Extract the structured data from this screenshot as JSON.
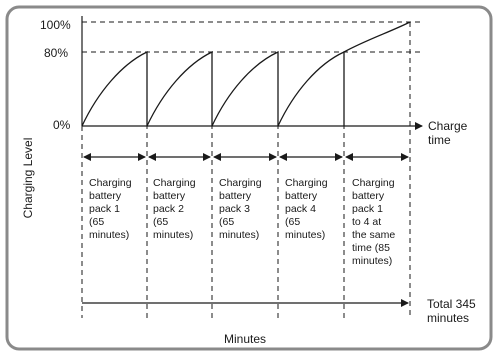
{
  "y_axis": {
    "label": "Charging Level",
    "ticks": [
      "100%",
      "80%",
      "0%"
    ]
  },
  "x_axis": {
    "label": "Minutes",
    "end_label_lines": [
      "Charge",
      "time"
    ]
  },
  "segments": [
    {
      "lines": [
        "Charging",
        "battery",
        "pack 1",
        "(65",
        "minutes)"
      ]
    },
    {
      "lines": [
        "Charging",
        "battery",
        "pack 2",
        "(65",
        "minutes)"
      ]
    },
    {
      "lines": [
        "Charging",
        "battery",
        "pack 3",
        "(65",
        "minutes)"
      ]
    },
    {
      "lines": [
        "Charging",
        "battery",
        "pack 4",
        "(65",
        "minutes)"
      ]
    },
    {
      "lines": [
        "Charging",
        "battery",
        "pack 1",
        "to 4 at",
        "the same",
        "time (85",
        "minutes)"
      ]
    }
  ],
  "total": {
    "lines": [
      "Total 345",
      "minutes"
    ]
  },
  "colors": {
    "frame": "#8a8a8a",
    "line": "#1a1a1a",
    "background": "#ffffff"
  }
}
